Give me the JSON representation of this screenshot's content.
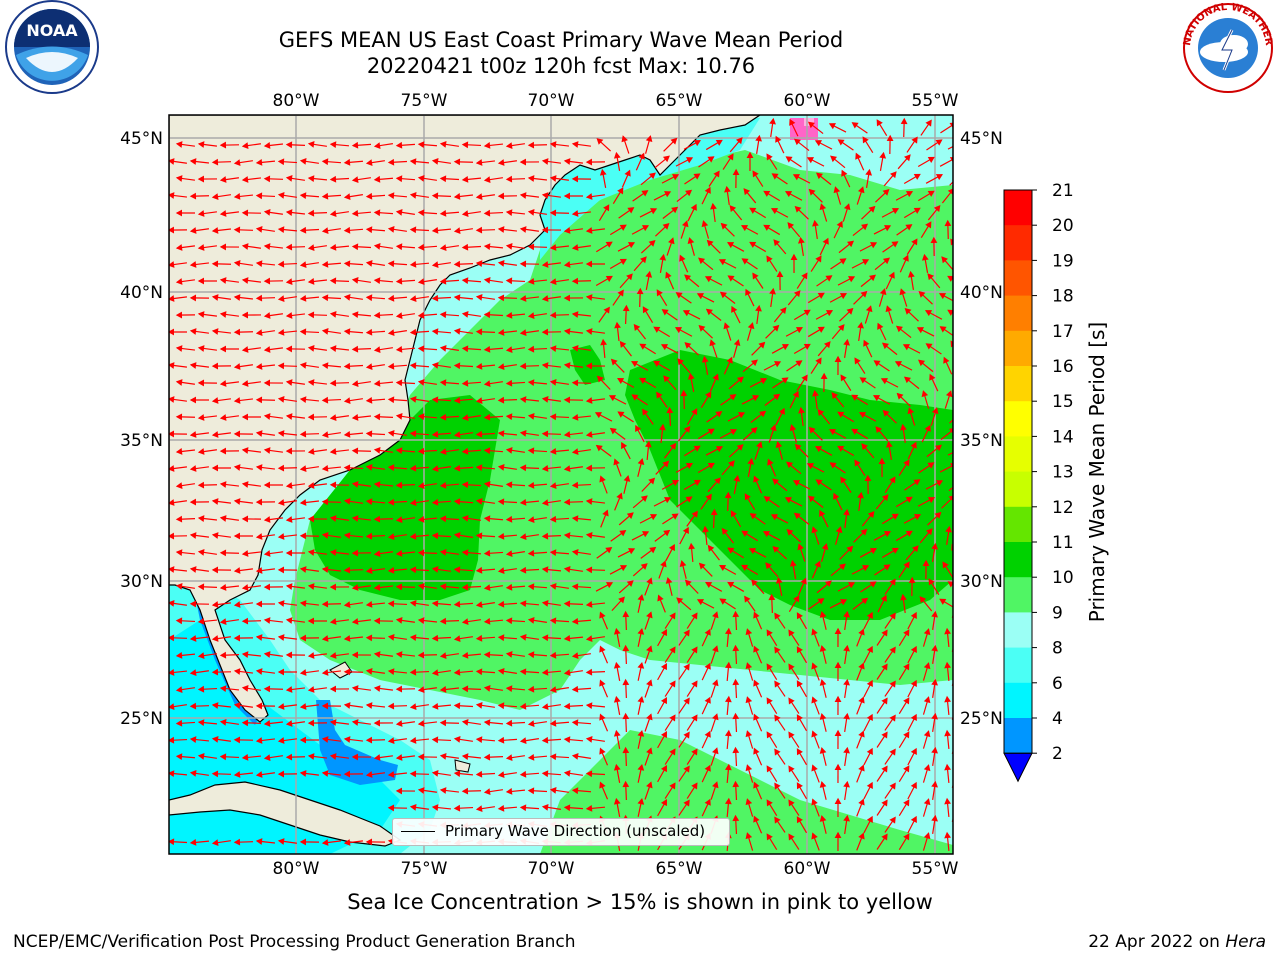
{
  "header": {
    "title": "GEFS MEAN US East Coast Primary Wave Mean Period",
    "subtitle": "20220421 t00z 120h fcst   Max: 10.76"
  },
  "logos": {
    "left": "noaa-logo",
    "right": "nws-logo",
    "right_text": "NATIONAL WEATHER SERVICE"
  },
  "map": {
    "top_lon_labels": [
      "80°W",
      "75°W",
      "70°W",
      "65°W",
      "60°W",
      "55°W"
    ],
    "bottom_lon_labels": [
      "80°W",
      "75°W",
      "70°W",
      "65°W",
      "60°W",
      "55°W"
    ],
    "left_lat_labels": [
      "45°N",
      "40°N",
      "35°N",
      "30°N",
      "25°N"
    ],
    "right_lat_labels": [
      "45°N",
      "40°N",
      "35°N",
      "30°N",
      "25°N"
    ],
    "legend_label": "Primary Wave Direction (unscaled)",
    "arrow_color": "#ff0000",
    "land_color": "#eeecdb"
  },
  "colorbar": {
    "label": "Primary Wave Mean Period [s]",
    "ticks": [
      "21",
      "20",
      "19",
      "18",
      "17",
      "16",
      "15",
      "14",
      "13",
      "12",
      "11",
      "10",
      "9",
      "8",
      "6",
      "4",
      "2"
    ],
    "colors": [
      "#ff0000",
      "#ff2a00",
      "#ff5500",
      "#ff7f00",
      "#ffaa00",
      "#ffd400",
      "#ffff00",
      "#e6ff00",
      "#c8ff00",
      "#64e600",
      "#00d200",
      "#50f564",
      "#9bfff5",
      "#4bfff5",
      "#00f5ff",
      "#0096ff",
      "#0000ff"
    ]
  },
  "footer": {
    "note": "Sea Ice Concentration > 15% is shown in pink to yellow",
    "org": "NCEP/EMC/Verification Post Processing Product Generation Branch",
    "date": "22 Apr 2022 on",
    "host": "Hera"
  }
}
